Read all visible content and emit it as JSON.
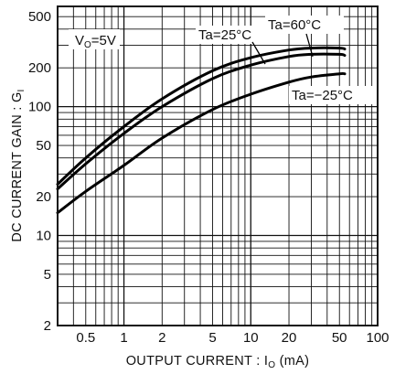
{
  "chart_data": {
    "type": "line",
    "x_scale": "log",
    "y_scale": "log",
    "xlim": [
      0.3,
      100
    ],
    "ylim": [
      2,
      600
    ],
    "grid": true,
    "title": "",
    "xlabel_main": "OUTPUT CURRENT : I",
    "xlabel_sub": "O",
    "xlabel_unit": " (mA)",
    "ylabel_main": "DC CURRENT GAIN : G",
    "ylabel_sub": "I",
    "x_ticks": [
      {
        "value": 0.5,
        "label": "0.5"
      },
      {
        "value": 1,
        "label": "1"
      },
      {
        "value": 2,
        "label": "2"
      },
      {
        "value": 5,
        "label": "5"
      },
      {
        "value": 10,
        "label": "10"
      },
      {
        "value": 20,
        "label": "20"
      },
      {
        "value": 50,
        "label": "50"
      },
      {
        "value": 100,
        "label": "100"
      }
    ],
    "y_ticks": [
      {
        "value": 2,
        "label": "2"
      },
      {
        "value": 5,
        "label": "5"
      },
      {
        "value": 10,
        "label": "10"
      },
      {
        "value": 20,
        "label": "20"
      },
      {
        "value": 50,
        "label": "50"
      },
      {
        "value": 100,
        "label": "100"
      },
      {
        "value": 200,
        "label": "200"
      },
      {
        "value": 500,
        "label": "500"
      }
    ],
    "condition": {
      "main": "V",
      "sub": "O",
      "rest": "=5V"
    },
    "series": [
      {
        "name": "Ta=60°C",
        "x": [
          0.3,
          0.5,
          1,
          2,
          5,
          10,
          20,
          30,
          50,
          55
        ],
        "y": [
          25,
          40,
          70,
          115,
          190,
          240,
          275,
          285,
          285,
          280
        ]
      },
      {
        "name": "Ta=25°C",
        "x": [
          0.3,
          0.5,
          1,
          2,
          5,
          10,
          20,
          30,
          50,
          55
        ],
        "y": [
          23,
          36,
          62,
          100,
          165,
          210,
          245,
          255,
          255,
          250
        ]
      },
      {
        "name": "Ta=−25°C",
        "x": [
          0.3,
          0.5,
          1,
          2,
          5,
          10,
          20,
          30,
          50,
          55
        ],
        "y": [
          15,
          22,
          35,
          57,
          95,
          125,
          155,
          170,
          180,
          180
        ]
      }
    ]
  }
}
